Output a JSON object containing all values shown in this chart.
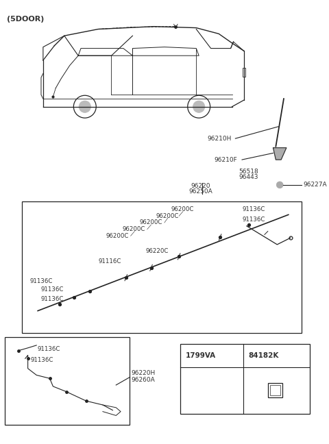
{
  "title": "(5DOOR)",
  "bg_color": "#ffffff",
  "line_color": "#222222",
  "text_color": "#333333",
  "parts": {
    "antenna_rod": "96210H",
    "antenna_base": "96210F",
    "gasket1": "56518",
    "gasket2": "96443",
    "antenna_nut": "96227A",
    "cable_main": "96220",
    "cable_sub": "96250A",
    "feeder1": "96200C",
    "feeder2": "96220C",
    "clip1": "91136C",
    "clip2": "91116C",
    "cable_h": "96220H",
    "cable_a": "96260A",
    "part_a": "1799VA",
    "part_b": "84182K"
  }
}
